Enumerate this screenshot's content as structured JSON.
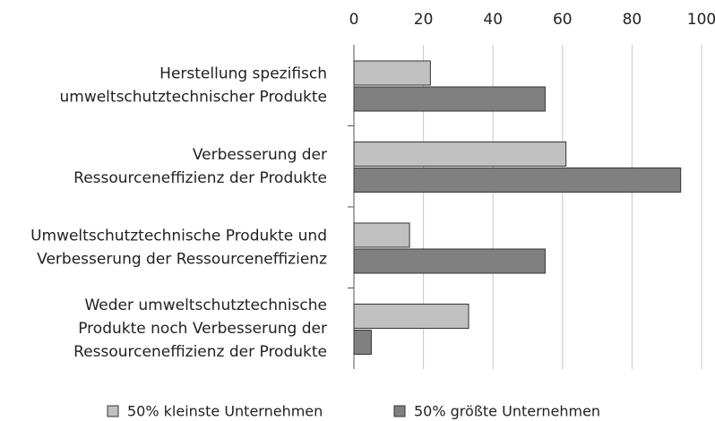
{
  "chart_data": {
    "type": "bar",
    "orientation": "horizontal",
    "categories": [
      [
        "Herstellung spezifisch",
        "umweltschutztechnischer Produkte"
      ],
      [
        "Verbesserung der",
        "Ressourceneffizienz der Produkte"
      ],
      [
        "Umweltschutztechnische Produkte und",
        "Verbesserung der Ressourceneffizienz"
      ],
      [
        "Weder umweltschutztechnische",
        "Produkte noch Verbesserung der",
        "Ressourceneffizienz der Produkte"
      ]
    ],
    "series": [
      {
        "name": "50% kleinste Unternehmen",
        "color": "#c0c0c0",
        "values": [
          22,
          61,
          16,
          33
        ]
      },
      {
        "name": "50% größte Unternehmen",
        "color": "#808080",
        "values": [
          55,
          94,
          55,
          5
        ]
      }
    ],
    "xlim": [
      0,
      100
    ],
    "xticks": [
      0,
      20,
      40,
      60,
      80,
      100
    ],
    "grid": true
  }
}
